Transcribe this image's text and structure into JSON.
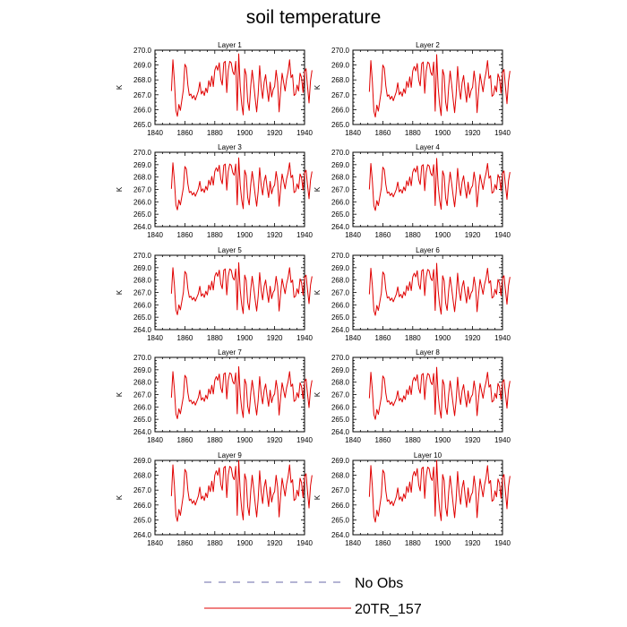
{
  "title": "soil temperature",
  "colors": {
    "series": "#e00000",
    "no_obs": "#6a6aa8",
    "frame": "#000000"
  },
  "legend": {
    "placement": "bottom-center",
    "entries": [
      {
        "label": "No Obs",
        "style": "dashed",
        "color": "#6a6aa8"
      },
      {
        "label": "20TR_157",
        "style": "solid",
        "color": "#e00000"
      }
    ]
  },
  "chart_data": [
    {
      "type": "line",
      "title": "Layer 1",
      "ylabel": "K",
      "xlim": [
        1840,
        1940
      ],
      "ylim": [
        265.0,
        270.0
      ],
      "xticks": [
        "1840",
        "1860",
        "1880",
        "1900",
        "1920",
        "1940"
      ],
      "yticks": [
        "265.0",
        "266.0",
        "267.0",
        "268.0",
        "269.0",
        "270.0"
      ],
      "series": [
        {
          "name": "20TR_157",
          "x_start": 1851,
          "offset": 0.35
        }
      ]
    },
    {
      "type": "line",
      "title": "Layer 2",
      "ylabel": "K",
      "xlim": [
        1840,
        1940
      ],
      "ylim": [
        265.0,
        270.0
      ],
      "xticks": [
        "1840",
        "1860",
        "1880",
        "1900",
        "1920",
        "1940"
      ],
      "yticks": [
        "265.0",
        "266.0",
        "267.0",
        "268.0",
        "269.0",
        "270.0"
      ],
      "series": [
        {
          "name": "20TR_157",
          "x_start": 1851,
          "offset": 0.3
        }
      ]
    },
    {
      "type": "line",
      "title": "Layer 3",
      "ylabel": "K",
      "xlim": [
        1840,
        1940
      ],
      "ylim": [
        264.0,
        270.0
      ],
      "xticks": [
        "1840",
        "1860",
        "1880",
        "1900",
        "1920",
        "1940"
      ],
      "yticks": [
        "264.0",
        "265.0",
        "266.0",
        "267.0",
        "268.0",
        "269.0",
        "270.0"
      ],
      "series": [
        {
          "name": "20TR_157",
          "x_start": 1851,
          "offset": 0.15
        }
      ]
    },
    {
      "type": "line",
      "title": "Layer 4",
      "ylabel": "K",
      "xlim": [
        1840,
        1940
      ],
      "ylim": [
        264.0,
        270.0
      ],
      "xticks": [
        "1840",
        "1860",
        "1880",
        "1900",
        "1920",
        "1940"
      ],
      "yticks": [
        "264.0",
        "265.0",
        "266.0",
        "267.0",
        "268.0",
        "269.0",
        "270.0"
      ],
      "series": [
        {
          "name": "20TR_157",
          "x_start": 1851,
          "offset": 0.1
        }
      ]
    },
    {
      "type": "line",
      "title": "Layer 5",
      "ylabel": "K",
      "xlim": [
        1840,
        1940
      ],
      "ylim": [
        264.0,
        270.0
      ],
      "xticks": [
        "1840",
        "1860",
        "1880",
        "1900",
        "1920",
        "1940"
      ],
      "yticks": [
        "264.0",
        "265.0",
        "266.0",
        "267.0",
        "268.0",
        "269.0",
        "270.0"
      ],
      "series": [
        {
          "name": "20TR_157",
          "x_start": 1851,
          "offset": 0.0
        }
      ]
    },
    {
      "type": "line",
      "title": "Layer 6",
      "ylabel": "K",
      "xlim": [
        1840,
        1940
      ],
      "ylim": [
        264.0,
        270.0
      ],
      "xticks": [
        "1840",
        "1860",
        "1880",
        "1900",
        "1920",
        "1940"
      ],
      "yticks": [
        "264.0",
        "265.0",
        "266.0",
        "267.0",
        "268.0",
        "269.0",
        "270.0"
      ],
      "series": [
        {
          "name": "20TR_157",
          "x_start": 1851,
          "offset": -0.05
        }
      ]
    },
    {
      "type": "line",
      "title": "Layer 7",
      "ylabel": "K",
      "xlim": [
        1840,
        1940
      ],
      "ylim": [
        264.0,
        270.0
      ],
      "xticks": [
        "1840",
        "1860",
        "1880",
        "1900",
        "1920",
        "1940"
      ],
      "yticks": [
        "264.0",
        "265.0",
        "266.0",
        "267.0",
        "268.0",
        "269.0",
        "270.0"
      ],
      "series": [
        {
          "name": "20TR_157",
          "x_start": 1851,
          "offset": -0.15
        }
      ]
    },
    {
      "type": "line",
      "title": "Layer 8",
      "ylabel": "K",
      "xlim": [
        1840,
        1940
      ],
      "ylim": [
        264.0,
        270.0
      ],
      "xticks": [
        "1840",
        "1860",
        "1880",
        "1900",
        "1920",
        "1940"
      ],
      "yticks": [
        "264.0",
        "265.0",
        "266.0",
        "267.0",
        "268.0",
        "269.0",
        "270.0"
      ],
      "series": [
        {
          "name": "20TR_157",
          "x_start": 1851,
          "offset": -0.2
        }
      ]
    },
    {
      "type": "line",
      "title": "Layer 9",
      "ylabel": "K",
      "xlim": [
        1840,
        1940
      ],
      "ylim": [
        264.0,
        269.0
      ],
      "xticks": [
        "1840",
        "1860",
        "1880",
        "1900",
        "1920",
        "1940"
      ],
      "yticks": [
        "264.0",
        "265.0",
        "266.0",
        "267.0",
        "268.0",
        "269.0"
      ],
      "series": [
        {
          "name": "20TR_157",
          "x_start": 1851,
          "offset": -0.3
        }
      ]
    },
    {
      "type": "line",
      "title": "Layer 10",
      "ylabel": "K",
      "xlim": [
        1840,
        1940
      ],
      "ylim": [
        264.0,
        269.0
      ],
      "xticks": [
        "1840",
        "1860",
        "1880",
        "1900",
        "1920",
        "1940"
      ],
      "yticks": [
        "264.0",
        "265.0",
        "266.0",
        "267.0",
        "268.0",
        "269.0"
      ],
      "series": [
        {
          "name": "20TR_157",
          "x_start": 1851,
          "offset": -0.35
        }
      ]
    }
  ],
  "base_series": [
    266.9,
    269.0,
    267.6,
    265.6,
    265.2,
    266.0,
    265.6,
    266.3,
    267.0,
    268.7,
    268.5,
    267.3,
    266.6,
    266.7,
    266.4,
    266.6,
    266.3,
    266.6,
    266.9,
    267.5,
    266.7,
    266.9,
    266.6,
    267.1,
    266.8,
    267.6,
    267.2,
    267.9,
    267.2,
    268.3,
    268.6,
    268.3,
    268.8,
    267.7,
    267.3,
    268.8,
    268.9,
    266.8,
    268.3,
    268.9,
    268.8,
    268.2,
    268.0,
    268.9,
    265.6,
    269.4,
    267.2,
    266.0,
    265.3,
    268.4,
    268.0,
    266.2,
    265.6,
    267.2,
    268.3,
    267.4,
    266.4,
    265.5,
    266.7,
    268.6,
    267.2,
    266.4,
    267.5,
    268.0,
    267.0,
    266.2,
    267.5,
    266.5,
    267.0,
    267.2,
    268.3,
    267.5,
    265.5,
    266.9,
    268.1,
    267.5,
    266.9,
    267.7,
    268.2,
    269.0,
    267.8,
    268.0,
    266.6,
    266.7,
    267.3,
    266.9,
    268.1,
    267.8,
    266.8,
    268.2,
    268.4,
    267.2,
    266.1,
    267.6,
    268.3
  ]
}
